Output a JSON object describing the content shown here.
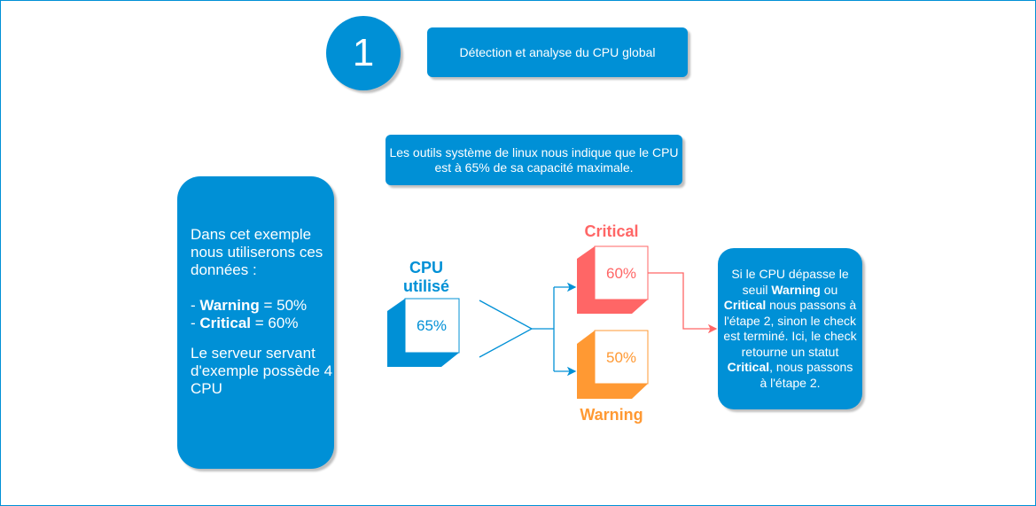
{
  "step": {
    "number": "1",
    "title": "Détection et analyse du CPU global"
  },
  "info_box": "Les outils système de linux nous indique que le CPU est à 65% de sa capacité maximale.",
  "left_box": {
    "line1": "Dans cet exemple nous utiliserons ces données :",
    "warning_label": "Warning",
    "warning_value": " = 50%",
    "critical_label": "Critical",
    "critical_value": " = 60%",
    "line3": "Le serveur servant d'exemple possède 4 CPU"
  },
  "cpu": {
    "label": "CPU utilisé",
    "value": "65%",
    "color": "#0090d6"
  },
  "critical": {
    "label": "Critical",
    "value": "60%",
    "color": "#ff6666"
  },
  "warning": {
    "label": "Warning",
    "value": "50%",
    "color": "#ff9933"
  },
  "right_box": {
    "p1": "Si le CPU dépasse le seuil ",
    "warning": "Warning",
    "p2": " ou ",
    "critical": "Critical",
    "p3": " nous passons à l'étape 2, sinon le check est terminé. Ici, le check retourne un statut ",
    "critical2": "Critical",
    "p4": ", nous passons à l'étape 2."
  }
}
